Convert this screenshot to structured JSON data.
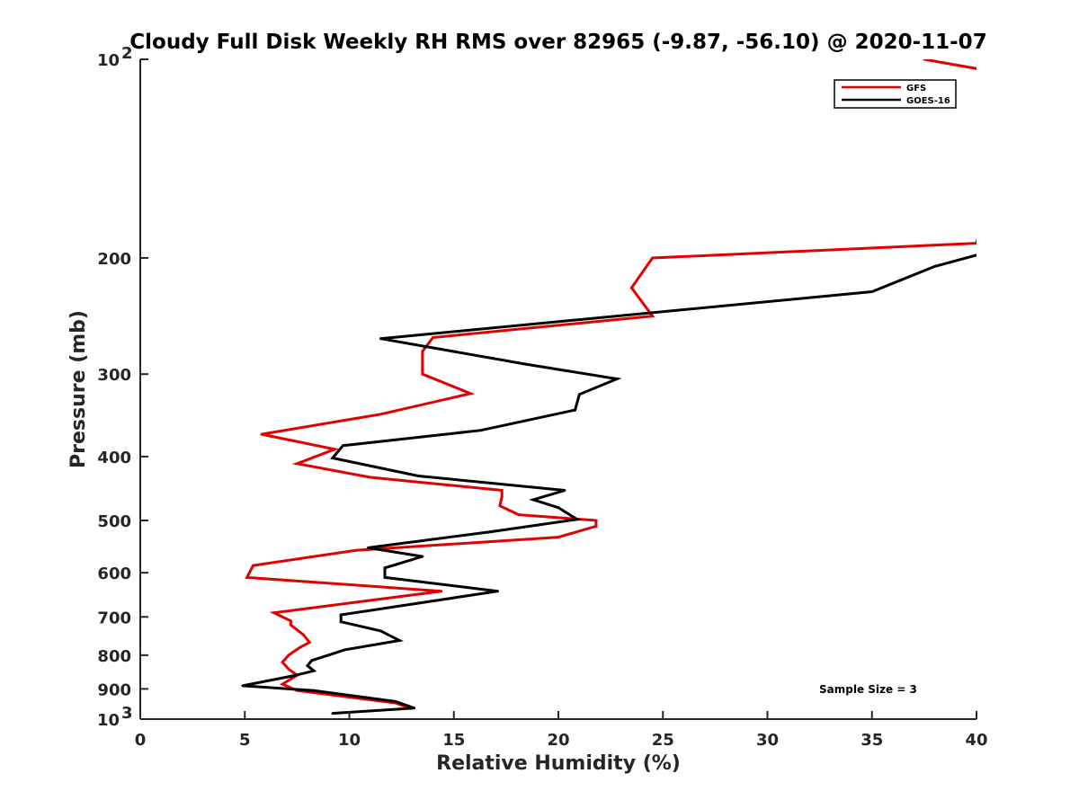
{
  "chart_data": {
    "type": "line",
    "title": "Cloudy Full Disk Weekly RH RMS over 82965 (-9.87, -56.10) @ 2020-11-07",
    "xlabel": "Relative Humidity (%)",
    "ylabel": "Pressure (mb)",
    "xlim": [
      0,
      40
    ],
    "ylim": [
      100,
      1000
    ],
    "y_scale": "log",
    "y_reversed": true,
    "grid": false,
    "legend_position": "top-right",
    "x_ticks": [
      "0",
      "5",
      "10",
      "15",
      "20",
      "25",
      "30",
      "35",
      "40"
    ],
    "y_ticks": [
      {
        "value": 100,
        "label": "10",
        "exp": "2"
      },
      {
        "value": 200,
        "label": "200"
      },
      {
        "value": 300,
        "label": "300"
      },
      {
        "value": 400,
        "label": "400"
      },
      {
        "value": 500,
        "label": "500"
      },
      {
        "value": 600,
        "label": "600"
      },
      {
        "value": 700,
        "label": "700"
      },
      {
        "value": 800,
        "label": "800"
      },
      {
        "value": 900,
        "label": "900"
      },
      {
        "value": 1000,
        "label": "10",
        "exp": "3"
      }
    ],
    "series": [
      {
        "name": "GFS",
        "color": "#e00000",
        "points": [
          [
            37.5,
            100
          ],
          [
            42,
            106
          ],
          [
            40,
            190
          ],
          [
            24.5,
            200
          ],
          [
            23.5,
            222
          ],
          [
            24.5,
            245
          ],
          [
            14,
            264
          ],
          [
            13.5,
            277
          ],
          [
            13.5,
            300
          ],
          [
            15.8,
            321
          ],
          [
            11.5,
            345
          ],
          [
            5.8,
            370
          ],
          [
            9.3,
            390
          ],
          [
            7.5,
            410
          ],
          [
            11,
            430
          ],
          [
            17.3,
            450
          ],
          [
            17.3,
            460
          ],
          [
            17.2,
            475
          ],
          [
            18.1,
            490
          ],
          [
            21.8,
            500
          ],
          [
            21.8,
            510
          ],
          [
            20,
            530
          ],
          [
            10.3,
            555
          ],
          [
            5.4,
            585
          ],
          [
            5.1,
            610
          ],
          [
            14.4,
            640
          ],
          [
            10.3,
            665
          ],
          [
            6.4,
            690
          ],
          [
            7.2,
            710
          ],
          [
            7.2,
            720
          ],
          [
            7.8,
            745
          ],
          [
            8.1,
            765
          ],
          [
            7.6,
            780
          ],
          [
            7.1,
            800
          ],
          [
            6.8,
            820
          ],
          [
            7.1,
            840
          ],
          [
            7.5,
            858
          ],
          [
            6.8,
            885
          ],
          [
            7.5,
            905
          ],
          [
            12.2,
            945
          ],
          [
            12.8,
            960
          ]
        ]
      },
      {
        "name": "GOES-16",
        "color": "#000000",
        "points": [
          [
            40,
            198
          ],
          [
            38,
            206
          ],
          [
            35,
            225
          ],
          [
            11.5,
            265
          ],
          [
            18.5,
            290
          ],
          [
            22.8,
            305
          ],
          [
            21,
            322
          ],
          [
            20.8,
            340
          ],
          [
            16.3,
            365
          ],
          [
            9.7,
            385
          ],
          [
            9.2,
            402
          ],
          [
            13.3,
            428
          ],
          [
            20.3,
            450
          ],
          [
            18.8,
            465
          ],
          [
            20,
            478
          ],
          [
            20.9,
            498
          ],
          [
            16.8,
            520
          ],
          [
            10.9,
            550
          ],
          [
            13.5,
            567
          ],
          [
            11.7,
            590
          ],
          [
            11.7,
            610
          ],
          [
            17.1,
            640
          ],
          [
            9.6,
            695
          ],
          [
            9.6,
            712
          ],
          [
            11.5,
            735
          ],
          [
            12.4,
            760
          ],
          [
            9.8,
            785
          ],
          [
            8.2,
            815
          ],
          [
            8,
            830
          ],
          [
            8.3,
            845
          ],
          [
            7.3,
            860
          ],
          [
            4.9,
            890
          ],
          [
            8.3,
            905
          ],
          [
            12.2,
            940
          ],
          [
            13.1,
            962
          ],
          [
            9.2,
            980
          ]
        ]
      }
    ],
    "annotation": "Sample Size = 3"
  }
}
